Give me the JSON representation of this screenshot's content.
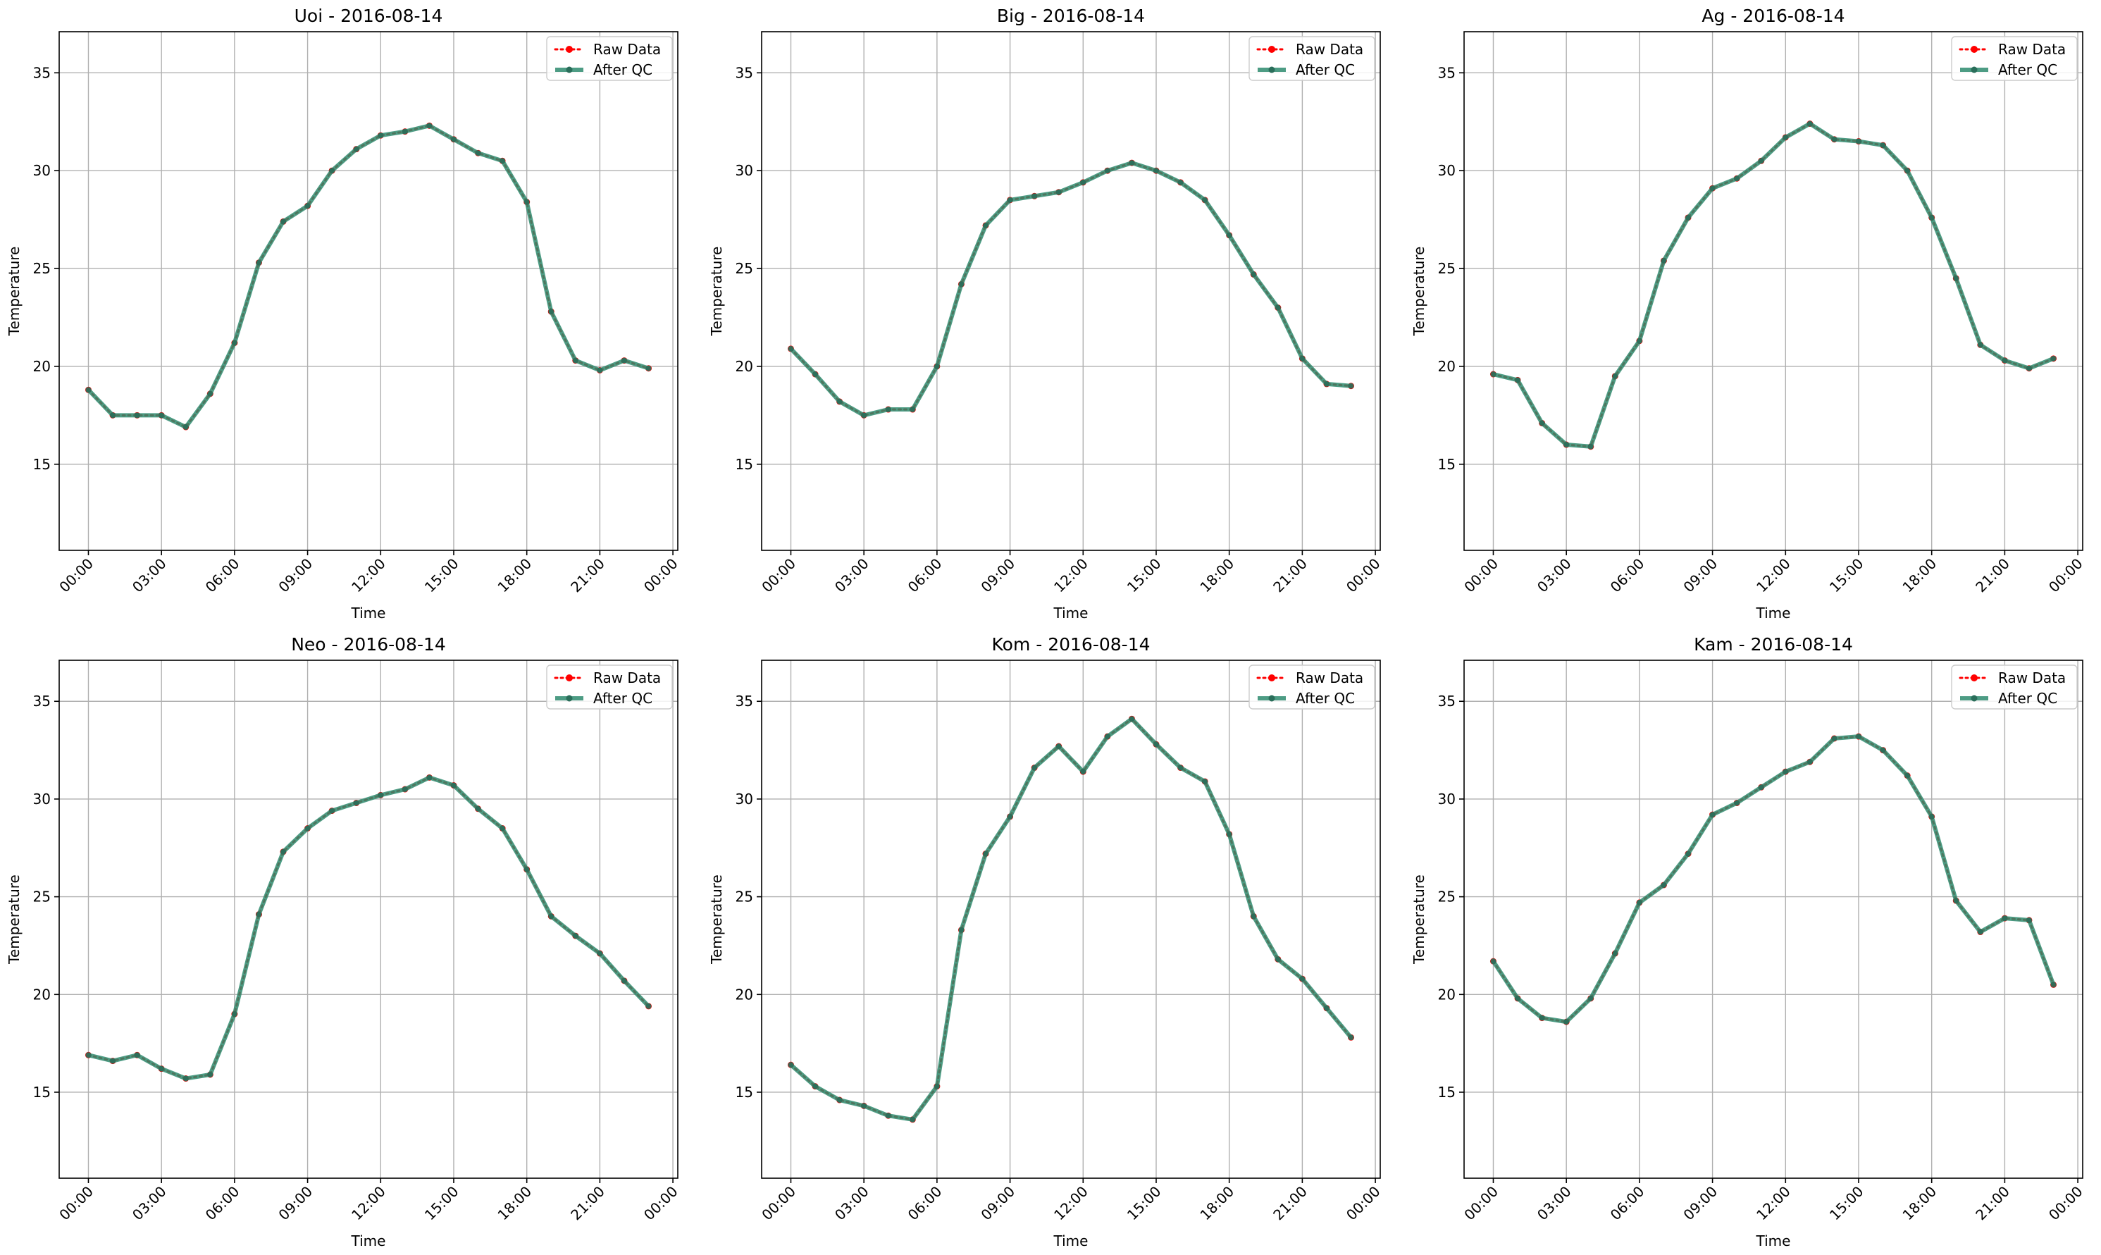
{
  "colors": {
    "raw": "#ff0000",
    "qc": "#2e8b6e",
    "grid": "#b0b0b0",
    "axes": "#000000",
    "legend_border": "#cccccc"
  },
  "chart_data": [
    {
      "type": "line",
      "title": "Uoi - 2016-08-14",
      "xlabel": "Time",
      "ylabel": "Temperature",
      "x": [
        "00:00",
        "01:00",
        "02:00",
        "03:00",
        "04:00",
        "05:00",
        "06:00",
        "07:00",
        "08:00",
        "09:00",
        "10:00",
        "11:00",
        "12:00",
        "13:00",
        "14:00",
        "15:00",
        "16:00",
        "17:00",
        "18:00",
        "19:00",
        "20:00",
        "21:00",
        "22:00",
        "23:00"
      ],
      "xticks": [
        "00:00",
        "03:00",
        "06:00",
        "09:00",
        "12:00",
        "15:00",
        "18:00",
        "21:00",
        "00:00"
      ],
      "yticks": [
        15,
        20,
        25,
        30,
        35
      ],
      "ylim": [
        10.6,
        37.1
      ],
      "grid": true,
      "legend_position": "top-right",
      "series": [
        {
          "name": "Raw Data",
          "values": [
            18.8,
            17.5,
            17.5,
            17.5,
            16.9,
            18.6,
            21.2,
            25.3,
            27.4,
            28.2,
            30.0,
            31.1,
            31.8,
            32.0,
            32.3,
            31.6,
            30.9,
            30.5,
            28.4,
            22.8,
            20.3,
            19.8,
            20.3,
            19.9
          ]
        },
        {
          "name": "After QC",
          "values": [
            18.8,
            17.5,
            17.5,
            17.5,
            16.9,
            18.6,
            21.2,
            25.3,
            27.4,
            28.2,
            30.0,
            31.1,
            31.8,
            32.0,
            32.3,
            31.6,
            30.9,
            30.5,
            28.4,
            22.8,
            20.3,
            19.8,
            20.3,
            19.9
          ]
        }
      ]
    },
    {
      "type": "line",
      "title": "Big - 2016-08-14",
      "xlabel": "Time",
      "ylabel": "Temperature",
      "x": [
        "00:00",
        "01:00",
        "02:00",
        "03:00",
        "04:00",
        "05:00",
        "06:00",
        "07:00",
        "08:00",
        "09:00",
        "10:00",
        "11:00",
        "12:00",
        "13:00",
        "14:00",
        "15:00",
        "16:00",
        "17:00",
        "18:00",
        "19:00",
        "20:00",
        "21:00",
        "22:00",
        "23:00"
      ],
      "xticks": [
        "00:00",
        "03:00",
        "06:00",
        "09:00",
        "12:00",
        "15:00",
        "18:00",
        "21:00",
        "00:00"
      ],
      "yticks": [
        15,
        20,
        25,
        30,
        35
      ],
      "ylim": [
        10.6,
        37.1
      ],
      "grid": true,
      "legend_position": "top-right",
      "series": [
        {
          "name": "Raw Data",
          "values": [
            20.9,
            19.6,
            18.2,
            17.5,
            17.8,
            17.8,
            20.0,
            24.2,
            27.2,
            28.5,
            28.7,
            28.9,
            29.4,
            30.0,
            30.4,
            30.0,
            29.4,
            28.5,
            26.7,
            24.7,
            23.0,
            20.4,
            19.1,
            19.0
          ]
        },
        {
          "name": "After QC",
          "values": [
            20.9,
            19.6,
            18.2,
            17.5,
            17.8,
            17.8,
            20.0,
            24.2,
            27.2,
            28.5,
            28.7,
            28.9,
            29.4,
            30.0,
            30.4,
            30.0,
            29.4,
            28.5,
            26.7,
            24.7,
            23.0,
            20.4,
            19.1,
            19.0
          ]
        }
      ]
    },
    {
      "type": "line",
      "title": "Ag - 2016-08-14",
      "xlabel": "Time",
      "ylabel": "Temperature",
      "x": [
        "00:00",
        "01:00",
        "02:00",
        "03:00",
        "04:00",
        "05:00",
        "06:00",
        "07:00",
        "08:00",
        "09:00",
        "10:00",
        "11:00",
        "12:00",
        "13:00",
        "14:00",
        "15:00",
        "16:00",
        "17:00",
        "18:00",
        "19:00",
        "20:00",
        "21:00",
        "22:00",
        "23:00"
      ],
      "xticks": [
        "00:00",
        "03:00",
        "06:00",
        "09:00",
        "12:00",
        "15:00",
        "18:00",
        "21:00",
        "00:00"
      ],
      "yticks": [
        15,
        20,
        25,
        30,
        35
      ],
      "ylim": [
        10.6,
        37.1
      ],
      "grid": true,
      "legend_position": "top-right",
      "series": [
        {
          "name": "Raw Data",
          "values": [
            19.6,
            19.3,
            17.1,
            16.0,
            15.9,
            19.5,
            21.3,
            25.4,
            27.6,
            29.1,
            29.6,
            30.5,
            31.7,
            32.4,
            31.6,
            31.5,
            31.3,
            30.0,
            27.6,
            24.5,
            21.1,
            20.3,
            19.9,
            20.4
          ]
        },
        {
          "name": "After QC",
          "values": [
            19.6,
            19.3,
            17.1,
            16.0,
            15.9,
            19.5,
            21.3,
            25.4,
            27.6,
            29.1,
            29.6,
            30.5,
            31.7,
            32.4,
            31.6,
            31.5,
            31.3,
            30.0,
            27.6,
            24.5,
            21.1,
            20.3,
            19.9,
            20.4
          ]
        }
      ]
    },
    {
      "type": "line",
      "title": "Neo - 2016-08-14",
      "xlabel": "Time",
      "ylabel": "Temperature",
      "x": [
        "00:00",
        "01:00",
        "02:00",
        "03:00",
        "04:00",
        "05:00",
        "06:00",
        "07:00",
        "08:00",
        "09:00",
        "10:00",
        "11:00",
        "12:00",
        "13:00",
        "14:00",
        "15:00",
        "16:00",
        "17:00",
        "18:00",
        "19:00",
        "20:00",
        "21:00",
        "22:00",
        "23:00"
      ],
      "xticks": [
        "00:00",
        "03:00",
        "06:00",
        "09:00",
        "12:00",
        "15:00",
        "18:00",
        "21:00",
        "00:00"
      ],
      "yticks": [
        15,
        20,
        25,
        30,
        35
      ],
      "ylim": [
        10.6,
        37.1
      ],
      "grid": true,
      "legend_position": "top-right",
      "series": [
        {
          "name": "Raw Data",
          "values": [
            16.9,
            16.6,
            16.9,
            16.2,
            15.7,
            15.9,
            19.0,
            24.1,
            27.3,
            28.5,
            29.4,
            29.8,
            30.2,
            30.5,
            31.1,
            30.7,
            29.5,
            28.5,
            26.4,
            24.0,
            23.0,
            22.1,
            20.7,
            19.4
          ]
        },
        {
          "name": "After QC",
          "values": [
            16.9,
            16.6,
            16.9,
            16.2,
            15.7,
            15.9,
            19.0,
            24.1,
            27.3,
            28.5,
            29.4,
            29.8,
            30.2,
            30.5,
            31.1,
            30.7,
            29.5,
            28.5,
            26.4,
            24.0,
            23.0,
            22.1,
            20.7,
            19.4
          ]
        }
      ]
    },
    {
      "type": "line",
      "title": "Kom - 2016-08-14",
      "xlabel": "Time",
      "ylabel": "Temperature",
      "x": [
        "00:00",
        "01:00",
        "02:00",
        "03:00",
        "04:00",
        "05:00",
        "06:00",
        "07:00",
        "08:00",
        "09:00",
        "10:00",
        "11:00",
        "12:00",
        "13:00",
        "14:00",
        "15:00",
        "16:00",
        "17:00",
        "18:00",
        "19:00",
        "20:00",
        "21:00",
        "22:00",
        "23:00"
      ],
      "xticks": [
        "00:00",
        "03:00",
        "06:00",
        "09:00",
        "12:00",
        "15:00",
        "18:00",
        "21:00",
        "00:00"
      ],
      "yticks": [
        15,
        20,
        25,
        30,
        35
      ],
      "ylim": [
        10.6,
        37.1
      ],
      "grid": true,
      "legend_position": "top-right",
      "series": [
        {
          "name": "Raw Data",
          "values": [
            16.4,
            15.3,
            14.6,
            14.3,
            13.8,
            13.6,
            15.3,
            23.3,
            27.2,
            29.1,
            31.6,
            32.7,
            31.4,
            33.2,
            34.1,
            32.8,
            31.6,
            30.9,
            28.2,
            24.0,
            21.8,
            20.8,
            19.3,
            17.8
          ]
        },
        {
          "name": "After QC",
          "values": [
            16.4,
            15.3,
            14.6,
            14.3,
            13.8,
            13.6,
            15.3,
            23.3,
            27.2,
            29.1,
            31.6,
            32.7,
            31.4,
            33.2,
            34.1,
            32.8,
            31.6,
            30.9,
            28.2,
            24.0,
            21.8,
            20.8,
            19.3,
            17.8
          ]
        }
      ]
    },
    {
      "type": "line",
      "title": "Kam - 2016-08-14",
      "xlabel": "Time",
      "ylabel": "Temperature",
      "x": [
        "00:00",
        "01:00",
        "02:00",
        "03:00",
        "04:00",
        "05:00",
        "06:00",
        "07:00",
        "08:00",
        "09:00",
        "10:00",
        "11:00",
        "12:00",
        "13:00",
        "14:00",
        "15:00",
        "16:00",
        "17:00",
        "18:00",
        "19:00",
        "20:00",
        "21:00",
        "22:00",
        "23:00"
      ],
      "xticks": [
        "00:00",
        "03:00",
        "06:00",
        "09:00",
        "12:00",
        "15:00",
        "18:00",
        "21:00",
        "00:00"
      ],
      "yticks": [
        15,
        20,
        25,
        30,
        35
      ],
      "ylim": [
        10.6,
        37.1
      ],
      "grid": true,
      "legend_position": "top-right",
      "series": [
        {
          "name": "Raw Data",
          "values": [
            21.7,
            19.8,
            18.8,
            18.6,
            19.8,
            22.1,
            24.7,
            25.6,
            27.2,
            29.2,
            29.8,
            30.6,
            31.4,
            31.9,
            33.1,
            33.2,
            32.5,
            31.2,
            29.1,
            24.8,
            23.2,
            23.9,
            23.8,
            20.5
          ]
        },
        {
          "name": "After QC",
          "values": [
            21.7,
            19.8,
            18.8,
            18.6,
            19.8,
            22.1,
            24.7,
            25.6,
            27.2,
            29.2,
            29.8,
            30.6,
            31.4,
            31.9,
            33.1,
            33.2,
            32.5,
            31.2,
            29.1,
            24.8,
            23.2,
            23.9,
            23.8,
            20.5
          ]
        }
      ]
    }
  ]
}
